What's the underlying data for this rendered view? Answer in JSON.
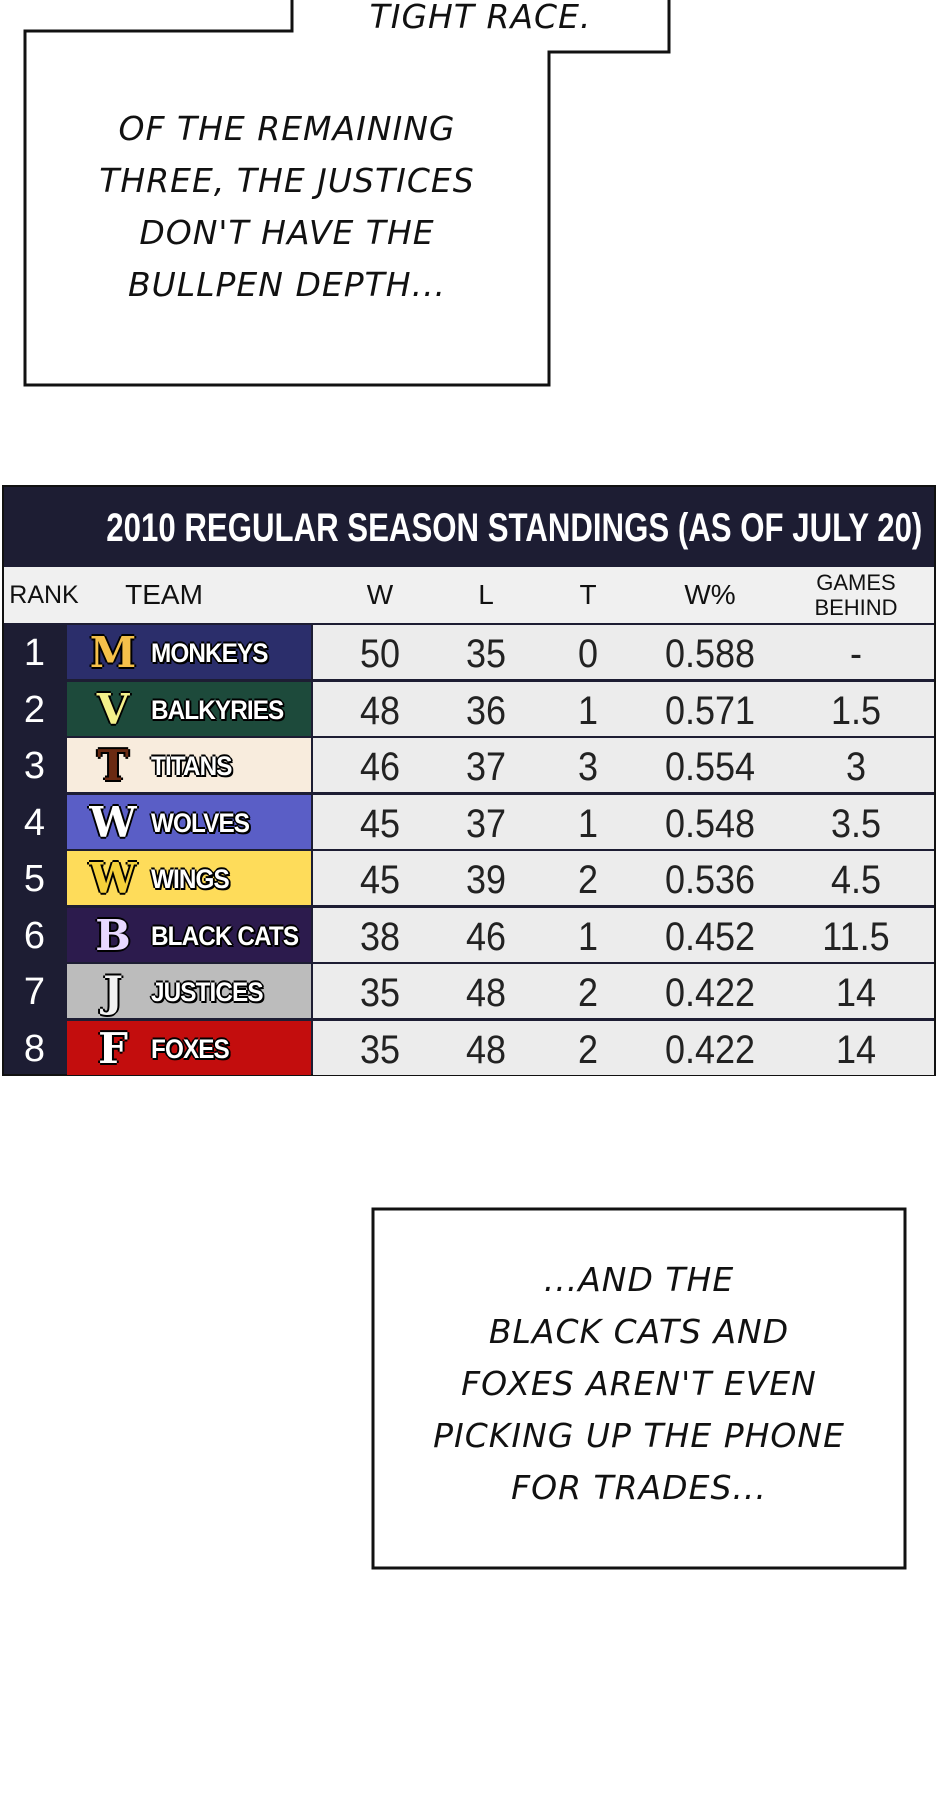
{
  "captions": {
    "top": "TIGHT RACE.",
    "middle": [
      "OF THE REMAINING",
      "THREE, THE JUSTICES",
      "DON'T HAVE THE",
      "BULLPEN DEPTH..."
    ],
    "bottom": [
      "...AND THE",
      "BLACK CATS AND",
      "FOXES AREN'T EVEN",
      "PICKING UP THE PHONE",
      "FOR TRADES..."
    ]
  },
  "chart_data": {
    "type": "table",
    "title": "2010 REGULAR SEASON STANDINGS (AS OF JULY 20)",
    "columns": [
      "RANK",
      "TEAM",
      "W",
      "L",
      "T",
      "W%",
      "GAMES BEHIND"
    ],
    "columns_gb": [
      "GAMES",
      "BEHIND"
    ],
    "rows": [
      {
        "rank": "1",
        "team": "MONKEYS",
        "logo": "M",
        "bg": "#2b2e6b",
        "logo_color": "#f5c04a",
        "w": "50",
        "l": "35",
        "t": "0",
        "pct": "0.588",
        "gb": "-"
      },
      {
        "rank": "2",
        "team": "BALKYRIES",
        "logo": "V",
        "bg": "#1d4a3b",
        "logo_color": "#f3ef8a",
        "w": "48",
        "l": "36",
        "t": "1",
        "pct": "0.571",
        "gb": "1.5"
      },
      {
        "rank": "3",
        "team": "TITANS",
        "logo": "T",
        "bg": "#f8ecdd",
        "logo_color": "#6a2a12",
        "w": "46",
        "l": "37",
        "t": "3",
        "pct": "0.554",
        "gb": "3"
      },
      {
        "rank": "4",
        "team": "WOLVES",
        "logo": "W",
        "bg": "#5a5ec6",
        "logo_color": "#ffffff",
        "w": "45",
        "l": "37",
        "t": "1",
        "pct": "0.548",
        "gb": "3.5"
      },
      {
        "rank": "5",
        "team": "WINGS",
        "logo": "W",
        "bg": "#fedc5a",
        "logo_color": "#f5d03a",
        "w": "45",
        "l": "39",
        "t": "2",
        "pct": "0.536",
        "gb": "4.5"
      },
      {
        "rank": "6",
        "team": "BLACK CATS",
        "logo": "B",
        "bg": "#2c1b4d",
        "logo_color": "#e8d8ff",
        "w": "38",
        "l": "46",
        "t": "1",
        "pct": "0.452",
        "gb": "11.5"
      },
      {
        "rank": "7",
        "team": "JUSTICES",
        "logo": "J",
        "bg": "#bcbcbc",
        "logo_color": "#f2f2f2",
        "w": "35",
        "l": "48",
        "t": "2",
        "pct": "0.422",
        "gb": "14"
      },
      {
        "rank": "8",
        "team": "FOXES",
        "logo": "F",
        "bg": "#c30d0d",
        "logo_color": "#ffffff",
        "w": "35",
        "l": "48",
        "t": "2",
        "pct": "0.422",
        "gb": "14"
      }
    ]
  }
}
